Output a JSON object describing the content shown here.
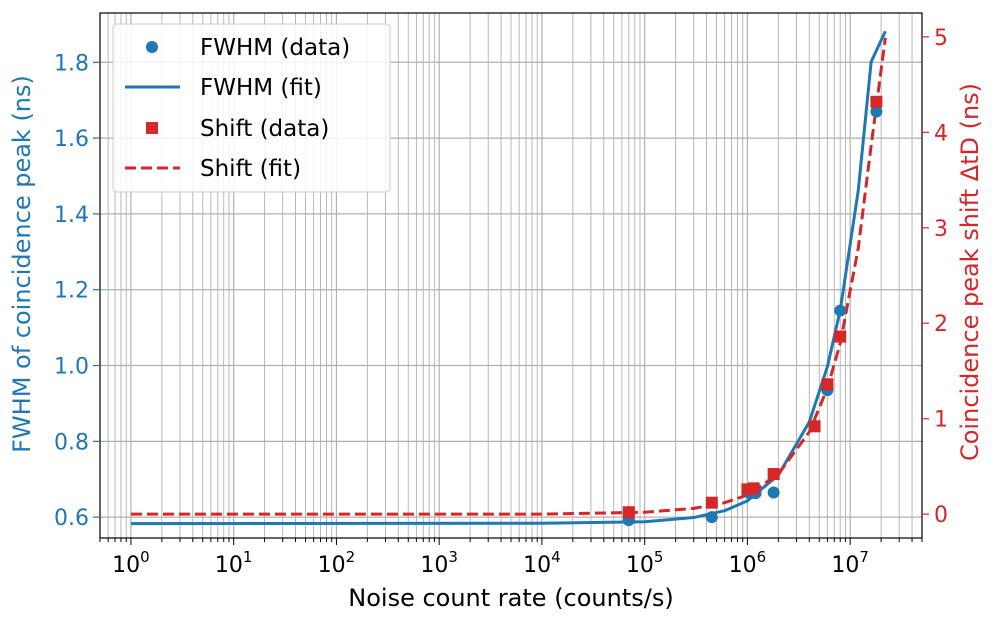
{
  "chart_data": {
    "type": "scatter",
    "x_scale": "log",
    "xlabel": "Noise count rate (counts/s)",
    "ylabel_left": "FWHM of coincidence peak (ns)",
    "ylabel_right": "Coincidence peak shift ΔtD (ns)",
    "xlim": [
      0.5,
      50000000
    ],
    "ylim_left": [
      0.545,
      1.93
    ],
    "ylim_right": [
      -0.25,
      5.25
    ],
    "x_ticks": [
      {
        "value": 1,
        "base": "10",
        "exp": "0"
      },
      {
        "value": 10,
        "base": "10",
        "exp": "1"
      },
      {
        "value": 100,
        "base": "10",
        "exp": "2"
      },
      {
        "value": 1000,
        "base": "10",
        "exp": "3"
      },
      {
        "value": 10000,
        "base": "10",
        "exp": "4"
      },
      {
        "value": 100000,
        "base": "10",
        "exp": "5"
      },
      {
        "value": 1000000,
        "base": "10",
        "exp": "6"
      },
      {
        "value": 10000000,
        "base": "10",
        "exp": "7"
      }
    ],
    "y_ticks_left": [
      "0.6",
      "0.8",
      "1.0",
      "1.2",
      "1.4",
      "1.6",
      "1.8"
    ],
    "y_ticks_right": [
      "0",
      "1",
      "2",
      "3",
      "4",
      "5"
    ],
    "grid": "major and minor",
    "legend_position": "top-left",
    "colors": {
      "fwhm": "#1f77b4",
      "shift": "#d62728"
    },
    "series": [
      {
        "name": "FWHM (data)",
        "axis": "left",
        "style": "circle-markers",
        "x": [
          70000,
          450000,
          1050000,
          1200000,
          1800000,
          6000000,
          8000000,
          18000000
        ],
        "y": [
          0.592,
          0.6,
          0.663,
          0.663,
          0.665,
          0.935,
          1.145,
          1.67
        ]
      },
      {
        "name": "FWHM (fit)",
        "axis": "left",
        "style": "solid-line",
        "x": [
          1,
          10000,
          100000,
          300000,
          600000,
          1000000,
          2000000,
          4000000,
          6000000,
          8000000,
          12000000,
          16000000,
          22000000
        ],
        "y": [
          0.583,
          0.584,
          0.588,
          0.599,
          0.617,
          0.643,
          0.711,
          0.851,
          0.997,
          1.146,
          1.463,
          1.801,
          1.882
        ]
      },
      {
        "name": "Shift (data)",
        "axis": "right",
        "style": "square-markers",
        "x": [
          70000,
          450000,
          1000000,
          1150000,
          1800000,
          4500000,
          6000000,
          8000000,
          18000000
        ],
        "y": [
          0.02,
          0.12,
          0.26,
          0.27,
          0.42,
          0.92,
          1.36,
          1.86,
          4.32
        ]
      },
      {
        "name": "Shift (fit)",
        "axis": "right",
        "style": "dashed-line",
        "x": [
          1,
          10000,
          100000,
          300000,
          600000,
          1000000,
          2000000,
          4000000,
          6000000,
          8000000,
          12000000,
          16000000,
          22000000
        ],
        "y": [
          0.0,
          0.0,
          0.02,
          0.06,
          0.12,
          0.2,
          0.42,
          0.86,
          1.32,
          1.79,
          2.79,
          3.86,
          4.99
        ]
      }
    ]
  }
}
